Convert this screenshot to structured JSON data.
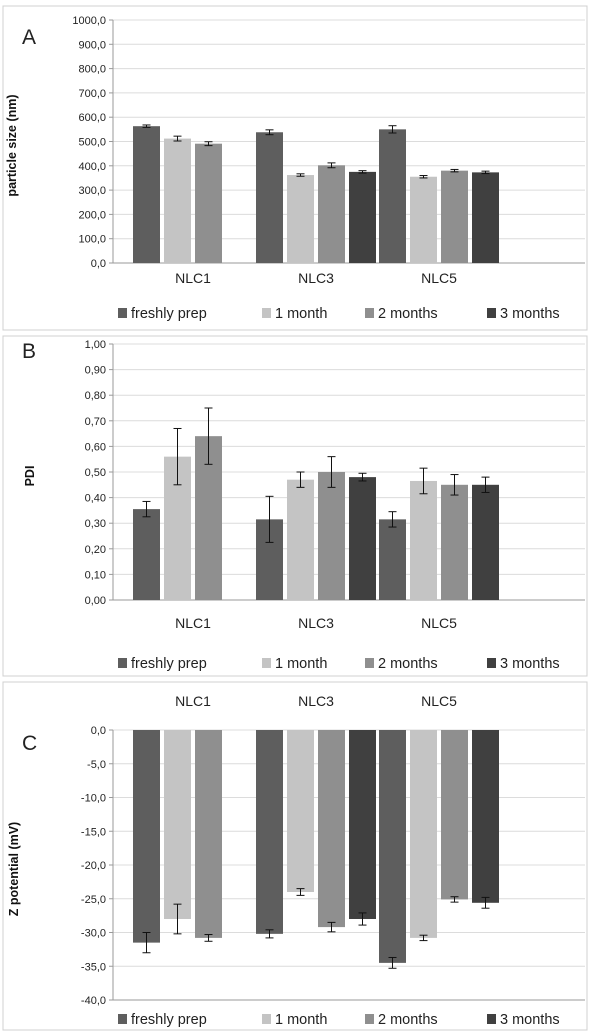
{
  "series_colors": [
    "#5e5e5e",
    "#c4c4c4",
    "#8f8f8f",
    "#404040"
  ],
  "chart_data": [
    {
      "type": "bar",
      "panel_letter": "A",
      "categories": [
        "NLC1",
        "NLC3",
        "NLC5"
      ],
      "series": [
        {
          "name": "freshly prep",
          "values": [
            563,
            538,
            550
          ],
          "errors": [
            5,
            10,
            15
          ]
        },
        {
          "name": "1 month",
          "values": [
            512,
            362,
            355
          ],
          "errors": [
            10,
            5,
            5
          ]
        },
        {
          "name": "2 months",
          "values": [
            491,
            402,
            380
          ],
          "errors": [
            8,
            10,
            5
          ]
        },
        {
          "name": "3 months",
          "values": [
            null,
            375,
            373
          ],
          "errors": [
            null,
            5,
            5
          ]
        }
      ],
      "ylabel": "particle size (nm)",
      "ylim": [
        0,
        1000
      ],
      "yticks": [
        0,
        100,
        200,
        300,
        400,
        500,
        600,
        700,
        800,
        900,
        1000
      ],
      "ytick_labels": [
        "0,0",
        "100,0",
        "200,0",
        "300,0",
        "400,0",
        "500,0",
        "600,0",
        "700,0",
        "800,0",
        "900,0",
        "1000,0"
      ],
      "grid": true,
      "legend": "bottom"
    },
    {
      "type": "bar",
      "panel_letter": "B",
      "categories": [
        "NLC1",
        "NLC3",
        "NLC5"
      ],
      "series": [
        {
          "name": "freshly prep",
          "values": [
            0.355,
            0.315,
            0.315
          ],
          "errors": [
            0.03,
            0.09,
            0.03
          ]
        },
        {
          "name": "1 month",
          "values": [
            0.56,
            0.47,
            0.465
          ],
          "errors": [
            0.11,
            0.03,
            0.05
          ]
        },
        {
          "name": "2 months",
          "values": [
            0.64,
            0.5,
            0.45
          ],
          "errors": [
            0.11,
            0.06,
            0.04
          ]
        },
        {
          "name": "3 months",
          "values": [
            null,
            0.48,
            0.45
          ],
          "errors": [
            null,
            0.015,
            0.03
          ]
        }
      ],
      "ylabel": "PDI",
      "ylim": [
        0,
        1
      ],
      "yticks": [
        0,
        0.1,
        0.2,
        0.3,
        0.4,
        0.5,
        0.6,
        0.7,
        0.8,
        0.9,
        1.0
      ],
      "ytick_labels": [
        "0,00",
        "0,10",
        "0,20",
        "0,30",
        "0,40",
        "0,50",
        "0,60",
        "0,70",
        "0,80",
        "0,90",
        "1,00"
      ],
      "grid": true,
      "legend": "bottom"
    },
    {
      "type": "bar",
      "panel_letter": "C",
      "categories": [
        "NLC1",
        "NLC3",
        "NLC5"
      ],
      "series": [
        {
          "name": "freshly prep",
          "values": [
            -31.5,
            -30.2,
            -34.5
          ],
          "errors": [
            1.5,
            0.6,
            0.8
          ]
        },
        {
          "name": "1 month",
          "values": [
            -28.0,
            -24.0,
            -30.8
          ],
          "errors": [
            2.2,
            0.5,
            0.4
          ]
        },
        {
          "name": "2 months",
          "values": [
            -30.8,
            -29.2,
            -25.1
          ],
          "errors": [
            0.5,
            0.7,
            0.4
          ]
        },
        {
          "name": "3 months",
          "values": [
            null,
            -28.0,
            -25.6
          ],
          "errors": [
            null,
            0.9,
            0.8
          ]
        }
      ],
      "ylabel": "Z potential (mV)",
      "ylim": [
        -40,
        0
      ],
      "yticks": [
        0,
        -5,
        -10,
        -15,
        -20,
        -25,
        -30,
        -35,
        -40
      ],
      "ytick_labels": [
        "0,0",
        "-5,0",
        "-10,0",
        "-15,0",
        "-20,0",
        "-25,0",
        "-30,0",
        "-35,0",
        "-40,0"
      ],
      "grid": true,
      "legend": "bottom",
      "category_labels_position": "top"
    }
  ]
}
